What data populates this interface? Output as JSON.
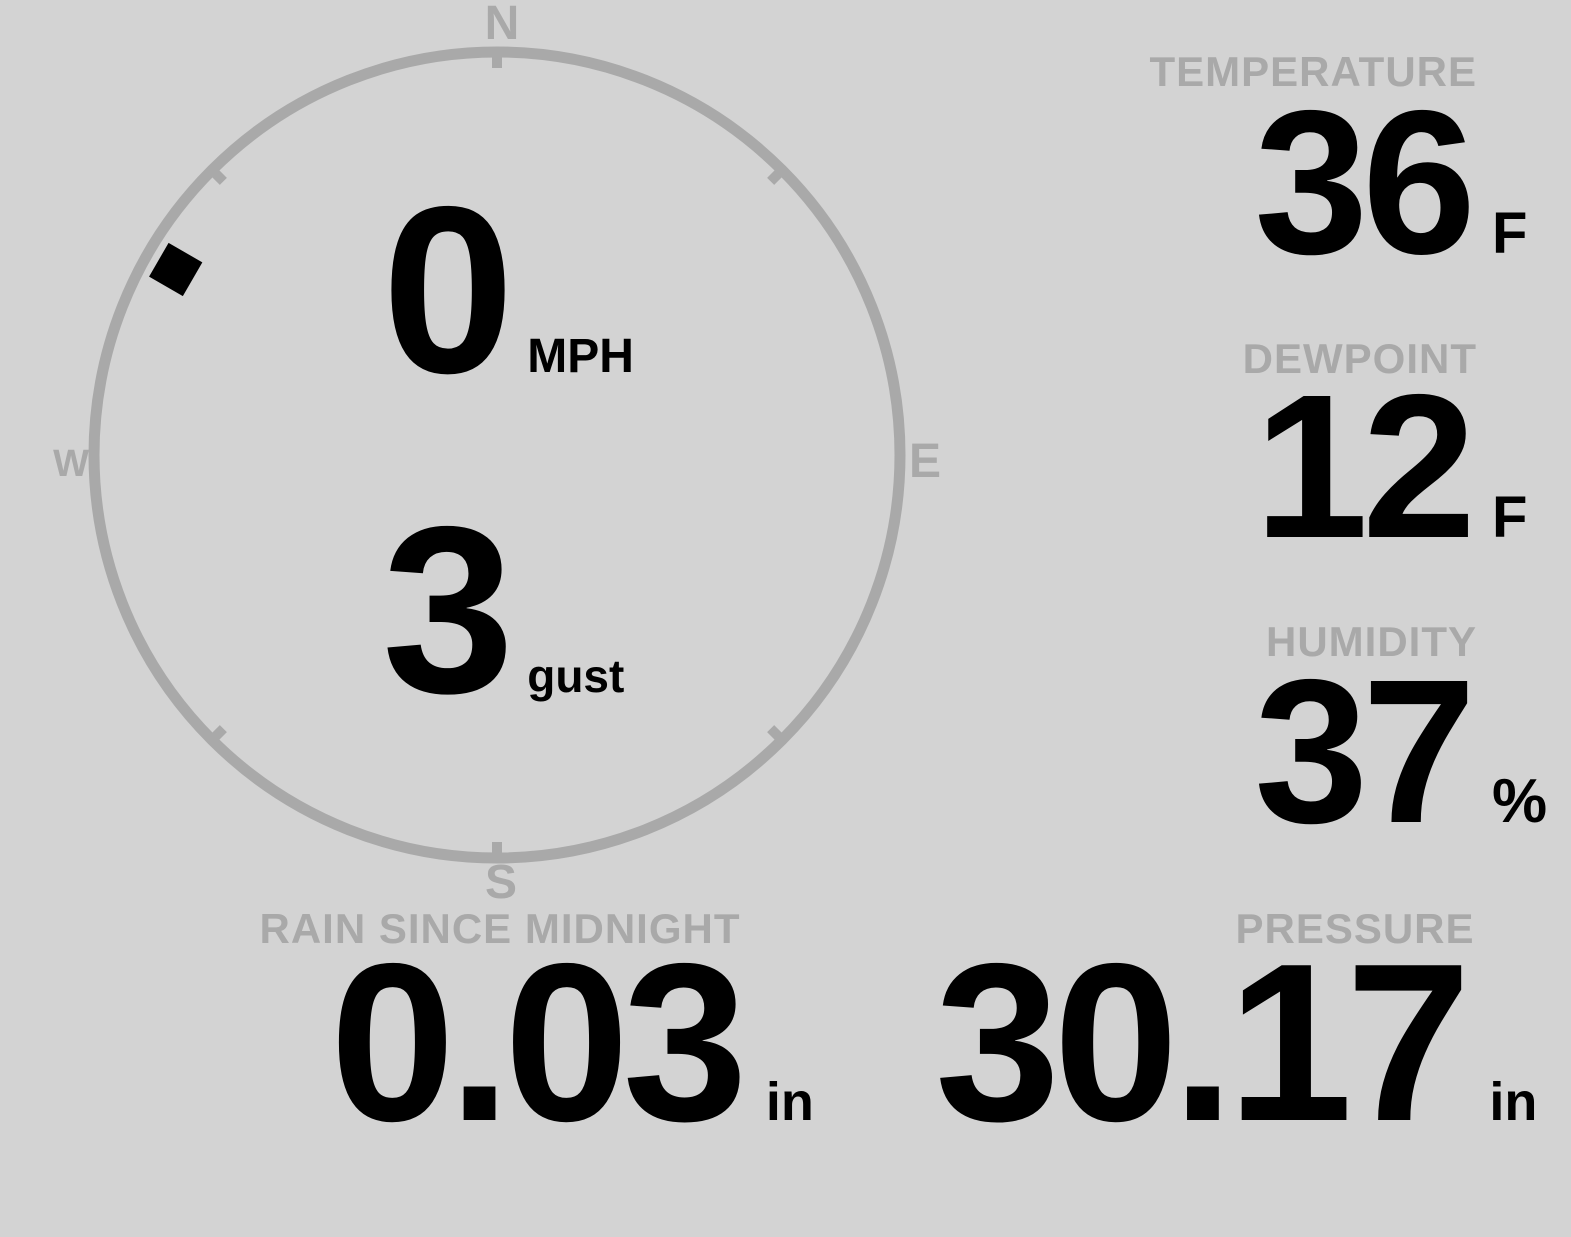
{
  "colors": {
    "background": "#d3d3d3",
    "muted": "#a9a9a9",
    "value_text": "#000000"
  },
  "wind": {
    "direction_deg": 300,
    "compass_labels": {
      "north": "N",
      "east": "E",
      "south": "S",
      "west": "W"
    },
    "speed": {
      "value": "0",
      "unit": "MPH"
    },
    "gust": {
      "value": "3",
      "unit": "gust"
    }
  },
  "metrics": [
    {
      "label": "TEMPERATURE",
      "value": "36",
      "unit": "F"
    },
    {
      "label": "DEWPOINT",
      "value": "12",
      "unit": "F"
    },
    {
      "label": "HUMIDITY",
      "value": "37",
      "unit": "%"
    }
  ],
  "bottom_metrics": [
    {
      "label": "RAIN SINCE MIDNIGHT",
      "value": "0.03",
      "unit": "in"
    },
    {
      "label": "PRESSURE",
      "value": "30.17",
      "unit": "in"
    }
  ]
}
